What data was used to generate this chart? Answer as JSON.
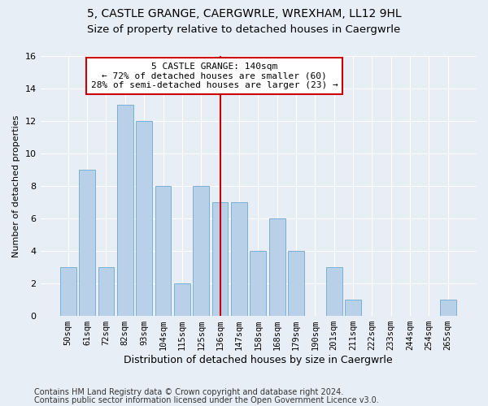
{
  "title1": "5, CASTLE GRANGE, CAERGWRLE, WREXHAM, LL12 9HL",
  "title2": "Size of property relative to detached houses in Caergwrle",
  "xlabel": "Distribution of detached houses by size in Caergwrle",
  "ylabel": "Number of detached properties",
  "categories": [
    "50sqm",
    "61sqm",
    "72sqm",
    "82sqm",
    "93sqm",
    "104sqm",
    "115sqm",
    "125sqm",
    "136sqm",
    "147sqm",
    "158sqm",
    "168sqm",
    "179sqm",
    "190sqm",
    "201sqm",
    "211sqm",
    "222sqm",
    "233sqm",
    "244sqm",
    "254sqm",
    "265sqm"
  ],
  "values": [
    3,
    9,
    3,
    13,
    12,
    8,
    2,
    8,
    7,
    7,
    4,
    6,
    4,
    0,
    3,
    1,
    0,
    0,
    0,
    0,
    1
  ],
  "bar_color": "#b8d0e8",
  "bar_edge_color": "#7aafd4",
  "highlight_index": 8,
  "vline_color": "#cc0000",
  "annotation_line1": "5 CASTLE GRANGE: 140sqm",
  "annotation_line2": "← 72% of detached houses are smaller (60)",
  "annotation_line3": "28% of semi-detached houses are larger (23) →",
  "annotation_box_color": "#ffffff",
  "annotation_box_edge": "#cc0000",
  "ylim": [
    0,
    16
  ],
  "yticks": [
    0,
    2,
    4,
    6,
    8,
    10,
    12,
    14,
    16
  ],
  "bg_color": "#e8eef6",
  "plot_bg_color": "#e8eef6",
  "footer_line1": "Contains HM Land Registry data © Crown copyright and database right 2024.",
  "footer_line2": "Contains public sector information licensed under the Open Government Licence v3.0.",
  "title1_fontsize": 10,
  "title2_fontsize": 9.5,
  "xlabel_fontsize": 9,
  "ylabel_fontsize": 8,
  "footer_fontsize": 7,
  "annotation_fontsize": 8,
  "tick_fontsize": 7.5
}
